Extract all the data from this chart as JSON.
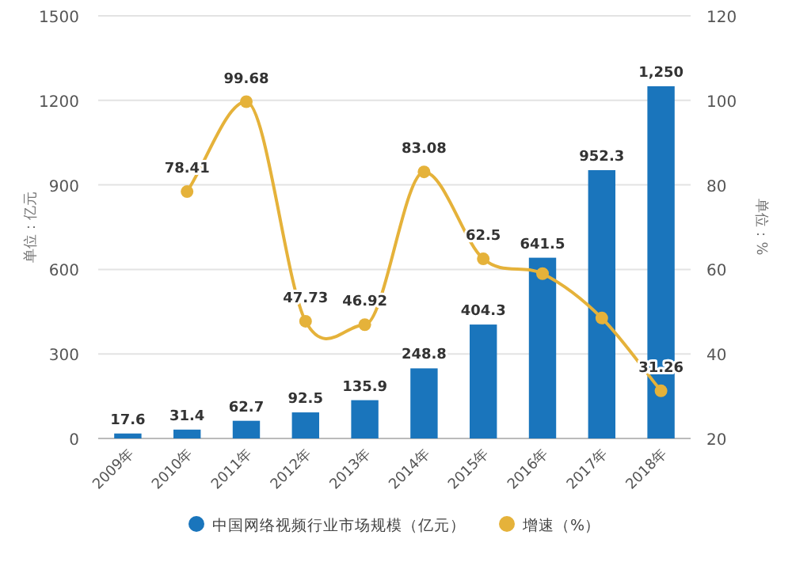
{
  "chart_data": {
    "type": "bar",
    "categories": [
      "2009年",
      "2010年",
      "2011年",
      "2012年",
      "2013年",
      "2014年",
      "2015年",
      "2016年",
      "2017年",
      "2018年"
    ],
    "series": [
      {
        "name": "中国网络视频行业市场规模（亿元）",
        "color": "#1a75bc",
        "values": [
          17.6,
          31.4,
          62.7,
          92.5,
          135.9,
          248.8,
          404.3,
          641.5,
          952.3,
          1250
        ],
        "value_labels": [
          "17.6",
          "31.4",
          "62.7",
          "92.5",
          "135.9",
          "248.8",
          "404.3",
          "641.5",
          "952.3",
          "1,250"
        ]
      },
      {
        "name": "增速（%）",
        "type": "line",
        "axis": "y2",
        "color": "#e5b23a",
        "marker": "circle",
        "values": [
          null,
          78.41,
          99.68,
          47.73,
          46.92,
          83.08,
          62.5,
          59,
          48.5,
          31.26
        ],
        "value_labels": [
          null,
          "78.41",
          "99.68",
          "47.73",
          "46.92",
          "83.08",
          "62.5",
          null,
          null,
          "31.26"
        ]
      }
    ],
    "ylabel": "单位：亿元",
    "y2label": "单位：%",
    "ylim": [
      0,
      1500
    ],
    "yticks": [
      0,
      300,
      600,
      900,
      1200,
      1500
    ],
    "y2lim": [
      20,
      120
    ],
    "y2ticks": [
      20,
      40,
      60,
      80,
      100,
      120
    ],
    "grid": "y",
    "legend": "bottom"
  }
}
